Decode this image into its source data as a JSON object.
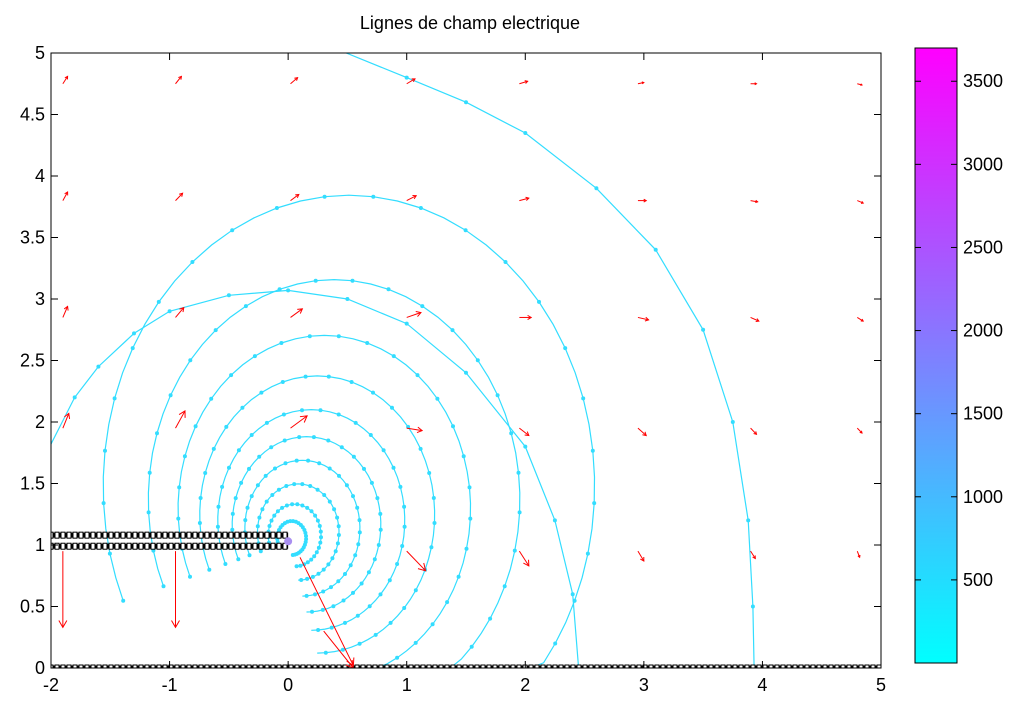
{
  "figure": {
    "background": "#ffffff"
  },
  "chart_data": {
    "type": "line",
    "title": "Lignes de champ electrique",
    "xlabel": "",
    "ylabel": "",
    "xlim": [
      -2,
      5
    ],
    "ylim": [
      0,
      5
    ],
    "x_ticks": [
      -2,
      -1,
      0,
      1,
      2,
      3,
      4,
      5
    ],
    "x_tick_labels": [
      "-2",
      "-1",
      "0",
      "1",
      "2",
      "3",
      "4",
      "5"
    ],
    "y_ticks": [
      0,
      0.5,
      1,
      1.5,
      2,
      2.5,
      3,
      3.5,
      4,
      4.5,
      5
    ],
    "y_tick_labels": [
      "0",
      "0.5",
      "1",
      "1.5",
      "2",
      "2.5",
      "3",
      "3.5",
      "4",
      "4.5",
      "5"
    ],
    "grid": false,
    "charge_position": [
      0,
      1.03
    ],
    "conductors": [
      {
        "name": "upper-plate-top",
        "x": [
          -2,
          0
        ],
        "y": 1.08
      },
      {
        "name": "upper-plate-bottom",
        "x": [
          -2,
          0
        ],
        "y": 0.99
      },
      {
        "name": "ground-plane",
        "x": [
          -2,
          5
        ],
        "y": 0
      }
    ],
    "field_lines": [
      {
        "angle_deg": 110,
        "radius": 0.12
      },
      {
        "angle_deg": 110,
        "radius": 0.22
      },
      {
        "angle_deg": 110,
        "radius": 0.34
      },
      {
        "angle_deg": 115,
        "radius": 0.48
      },
      {
        "angle_deg": 120,
        "radius": 0.62
      },
      {
        "angle_deg": 130,
        "radius": 0.78
      },
      {
        "angle_deg": 140,
        "radius": 0.98
      },
      {
        "angle_deg": 150,
        "radius": 1.22
      },
      {
        "angle_deg": 160,
        "radius": 1.55
      },
      {
        "angle_deg": 170,
        "radius": 2.05
      }
    ],
    "field_lines_explicit": [
      {
        "points": [
          [
            -2,
            1.82
          ],
          [
            -1.8,
            2.2
          ],
          [
            -1.6,
            2.45
          ],
          [
            -1.3,
            2.72
          ],
          [
            -1.0,
            2.9
          ],
          [
            -0.5,
            3.03
          ],
          [
            0,
            3.07
          ],
          [
            0.5,
            3.0
          ],
          [
            1.0,
            2.8
          ],
          [
            1.5,
            2.4
          ],
          [
            2.0,
            1.8
          ],
          [
            2.25,
            1.2
          ],
          [
            2.4,
            0.6
          ],
          [
            2.45,
            0
          ]
        ]
      },
      {
        "points": [
          [
            0.49,
            5.0
          ],
          [
            1.0,
            4.8
          ],
          [
            1.5,
            4.6
          ],
          [
            2.0,
            4.35
          ],
          [
            2.6,
            3.9
          ],
          [
            3.1,
            3.4
          ],
          [
            3.5,
            2.75
          ],
          [
            3.75,
            2.0
          ],
          [
            3.88,
            1.2
          ],
          [
            3.92,
            0.5
          ],
          [
            3.93,
            0
          ]
        ]
      }
    ],
    "quiver": [
      {
        "x": -1.9,
        "y": 4.75,
        "u": 0.04,
        "v": 0.06
      },
      {
        "x": -0.95,
        "y": 4.75,
        "u": 0.05,
        "v": 0.06
      },
      {
        "x": 0.02,
        "y": 4.75,
        "u": 0.06,
        "v": 0.05
      },
      {
        "x": 1.0,
        "y": 4.75,
        "u": 0.07,
        "v": 0.04
      },
      {
        "x": 1.95,
        "y": 4.75,
        "u": 0.07,
        "v": 0.02
      },
      {
        "x": 2.95,
        "y": 4.75,
        "u": 0.05,
        "v": 0.01
      },
      {
        "x": 3.9,
        "y": 4.75,
        "u": 0.05,
        "v": 0.0
      },
      {
        "x": 4.8,
        "y": 4.75,
        "u": 0.04,
        "v": -0.01
      },
      {
        "x": -1.9,
        "y": 3.8,
        "u": 0.04,
        "v": 0.07
      },
      {
        "x": -0.95,
        "y": 3.8,
        "u": 0.06,
        "v": 0.06
      },
      {
        "x": 0.02,
        "y": 3.8,
        "u": 0.07,
        "v": 0.05
      },
      {
        "x": 1.0,
        "y": 3.8,
        "u": 0.08,
        "v": 0.04
      },
      {
        "x": 1.95,
        "y": 3.8,
        "u": 0.08,
        "v": 0.02
      },
      {
        "x": 2.95,
        "y": 3.8,
        "u": 0.07,
        "v": 0.0
      },
      {
        "x": 3.9,
        "y": 3.8,
        "u": 0.06,
        "v": -0.01
      },
      {
        "x": 4.8,
        "y": 3.8,
        "u": 0.05,
        "v": -0.02
      },
      {
        "x": -1.9,
        "y": 2.85,
        "u": 0.04,
        "v": 0.09
      },
      {
        "x": -0.95,
        "y": 2.85,
        "u": 0.07,
        "v": 0.08
      },
      {
        "x": 0.02,
        "y": 2.85,
        "u": 0.1,
        "v": 0.07
      },
      {
        "x": 1.0,
        "y": 2.85,
        "u": 0.12,
        "v": 0.04
      },
      {
        "x": 1.95,
        "y": 2.85,
        "u": 0.1,
        "v": 0.0
      },
      {
        "x": 2.95,
        "y": 2.85,
        "u": 0.09,
        "v": -0.02
      },
      {
        "x": 3.9,
        "y": 2.85,
        "u": 0.07,
        "v": -0.03
      },
      {
        "x": 4.8,
        "y": 2.85,
        "u": 0.05,
        "v": -0.03
      },
      {
        "x": -1.9,
        "y": 1.95,
        "u": 0.05,
        "v": 0.12
      },
      {
        "x": -0.95,
        "y": 1.95,
        "u": 0.08,
        "v": 0.14
      },
      {
        "x": 0.02,
        "y": 1.95,
        "u": 0.14,
        "v": 0.1
      },
      {
        "x": 1.0,
        "y": 1.95,
        "u": 0.13,
        "v": -0.02
      },
      {
        "x": 1.95,
        "y": 1.95,
        "u": 0.08,
        "v": -0.06
      },
      {
        "x": 2.95,
        "y": 1.95,
        "u": 0.07,
        "v": -0.06
      },
      {
        "x": 3.9,
        "y": 1.95,
        "u": 0.05,
        "v": -0.05
      },
      {
        "x": 4.8,
        "y": 1.95,
        "u": 0.04,
        "v": -0.04
      },
      {
        "x": -1.9,
        "y": 0.95,
        "u": 0.0,
        "v": -0.62
      },
      {
        "x": -0.95,
        "y": 0.95,
        "u": 0.0,
        "v": -0.62
      },
      {
        "x": 1.0,
        "y": 0.95,
        "u": 0.16,
        "v": -0.16
      },
      {
        "x": 1.95,
        "y": 0.95,
        "u": 0.08,
        "v": -0.12
      },
      {
        "x": 2.95,
        "y": 0.95,
        "u": 0.05,
        "v": -0.08
      },
      {
        "x": 3.9,
        "y": 0.95,
        "u": 0.04,
        "v": -0.06
      },
      {
        "x": 4.8,
        "y": 0.95,
        "u": 0.02,
        "v": -0.05
      },
      {
        "x": 0.1,
        "y": 0.9,
        "u": 0.45,
        "v": -0.88
      },
      {
        "x": 0.3,
        "y": 0.3,
        "u": 0.25,
        "v": -0.3
      }
    ],
    "colorbar": {
      "range": [
        0,
        3700
      ],
      "ticks": [
        500,
        1000,
        1500,
        2000,
        2500,
        3000,
        3500
      ],
      "tick_labels": [
        "500",
        "1000",
        "1500",
        "2000",
        "2500",
        "3000",
        "3500"
      ],
      "color_low": "#00ffff",
      "color_high": "#ff00ff"
    },
    "colors": {
      "field_line": "#33ddff",
      "quiver": "#ff0000",
      "conductor": "#000000",
      "axes": "#000000"
    }
  }
}
